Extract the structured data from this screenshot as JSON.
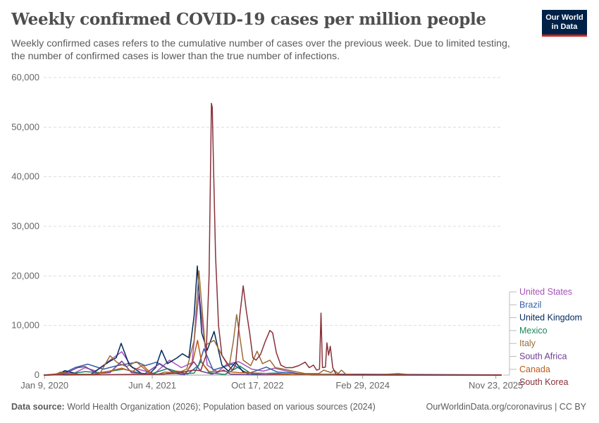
{
  "header": {
    "title": "Weekly confirmed COVID-19 cases per million people",
    "subtitle": "Weekly confirmed cases refers to the cumulative number of cases over the previous week. Due to limited testing, the number of confirmed cases is lower than the true number of infections.",
    "logo_line1": "Our World",
    "logo_line2": "in Data"
  },
  "footer": {
    "source_label": "Data source:",
    "source_text": "World Health Organization (2026); Population based on various sources (2024)",
    "right_text": "OurWorldinData.org/coronavirus | CC BY"
  },
  "chart_data": {
    "type": "line",
    "title": "Weekly confirmed COVID-19 cases per million people",
    "ylim": [
      0,
      60000
    ],
    "y_ticks": [
      0,
      10000,
      20000,
      30000,
      40000,
      50000,
      60000
    ],
    "y_tick_labels": [
      "0",
      "10,000",
      "20,000",
      "30,000",
      "40,000",
      "50,000",
      "60,000"
    ],
    "xlim": [
      "2020-01-05",
      "2025-12-21"
    ],
    "x_ticks": [
      "2020-01-09",
      "2021-06-04",
      "2022-10-17",
      "2024-02-29",
      "2025-11-23"
    ],
    "x_tick_labels": [
      "Jan 9, 2020",
      "Jun 4, 2021",
      "Oct 17, 2022",
      "Feb 29, 2024",
      "Nov 23, 2025"
    ],
    "grid": "horizontal dashed",
    "legend": "right",
    "series": [
      {
        "name": "United States",
        "color": "#a652ba",
        "values": [
          [
            "2020-01-05",
            0
          ],
          [
            "2020-03-15",
            50
          ],
          [
            "2020-04-10",
            650
          ],
          [
            "2020-06-01",
            450
          ],
          [
            "2020-07-20",
            1500
          ],
          [
            "2020-09-10",
            800
          ],
          [
            "2020-11-15",
            3000
          ],
          [
            "2021-01-10",
            4700
          ],
          [
            "2021-03-01",
            1500
          ],
          [
            "2021-06-15",
            300
          ],
          [
            "2021-08-25",
            3000
          ],
          [
            "2021-10-20",
            1500
          ],
          [
            "2021-12-10",
            2500
          ],
          [
            "2022-01-12",
            16500
          ],
          [
            "2022-02-20",
            2000
          ],
          [
            "2022-04-10",
            600
          ],
          [
            "2022-05-25",
            2200
          ],
          [
            "2022-07-20",
            2700
          ],
          [
            "2022-09-20",
            1200
          ],
          [
            "2022-11-15",
            800
          ],
          [
            "2023-01-05",
            1400
          ],
          [
            "2023-03-15",
            700
          ],
          [
            "2023-05-10",
            150
          ],
          [
            "2023-07-01",
            0
          ],
          [
            "2025-12-21",
            0
          ]
        ]
      },
      {
        "name": "Brazil",
        "color": "#3360a9",
        "values": [
          [
            "2020-01-05",
            0
          ],
          [
            "2020-03-25",
            80
          ],
          [
            "2020-06-01",
            1500
          ],
          [
            "2020-08-01",
            2200
          ],
          [
            "2020-10-15",
            1200
          ],
          [
            "2020-12-20",
            1900
          ],
          [
            "2021-03-25",
            2600
          ],
          [
            "2021-05-01",
            1900
          ],
          [
            "2021-06-25",
            2600
          ],
          [
            "2021-09-01",
            800
          ],
          [
            "2021-11-20",
            200
          ],
          [
            "2022-01-10",
            2000
          ],
          [
            "2022-02-05",
            5300
          ],
          [
            "2022-03-20",
            1000
          ],
          [
            "2022-06-20",
            2200
          ],
          [
            "2022-09-01",
            250
          ],
          [
            "2022-11-28",
            1600
          ],
          [
            "2023-01-20",
            600
          ],
          [
            "2023-04-01",
            400
          ],
          [
            "2023-06-01",
            150
          ],
          [
            "2023-09-01",
            150
          ],
          [
            "2024-01-15",
            180
          ],
          [
            "2025-12-21",
            30
          ]
        ]
      },
      {
        "name": "United Kingdom",
        "color": "#00295b",
        "values": [
          [
            "2020-01-05",
            0
          ],
          [
            "2020-03-10",
            50
          ],
          [
            "2020-04-15",
            900
          ],
          [
            "2020-06-15",
            150
          ],
          [
            "2020-08-15",
            100
          ],
          [
            "2020-10-01",
            1500
          ],
          [
            "2020-11-15",
            2800
          ],
          [
            "2020-12-15",
            3500
          ],
          [
            "2021-01-07",
            6400
          ],
          [
            "2021-02-15",
            2000
          ],
          [
            "2021-04-15",
            300
          ],
          [
            "2021-05-20",
            200
          ],
          [
            "2021-06-20",
            1500
          ],
          [
            "2021-07-18",
            5000
          ],
          [
            "2021-08-15",
            2300
          ],
          [
            "2021-10-01",
            3500
          ],
          [
            "2021-10-25",
            4300
          ],
          [
            "2021-11-25",
            3500
          ],
          [
            "2021-12-20",
            12000
          ],
          [
            "2022-01-04",
            22000
          ],
          [
            "2022-01-25",
            8500
          ],
          [
            "2022-02-20",
            5000
          ],
          [
            "2022-03-25",
            8800
          ],
          [
            "2022-05-01",
            2000
          ],
          [
            "2022-06-01",
            800
          ],
          [
            "2022-07-05",
            2600
          ],
          [
            "2022-08-10",
            600
          ],
          [
            "2022-10-01",
            400
          ],
          [
            "2022-12-15",
            300
          ],
          [
            "2023-02-01",
            150
          ],
          [
            "2023-06-01",
            50
          ],
          [
            "2025-12-21",
            0
          ]
        ]
      },
      {
        "name": "Mexico",
        "color": "#18855e",
        "values": [
          [
            "2020-01-05",
            0
          ],
          [
            "2020-04-15",
            100
          ],
          [
            "2020-07-20",
            700
          ],
          [
            "2020-10-01",
            500
          ],
          [
            "2021-01-20",
            1200
          ],
          [
            "2021-04-15",
            300
          ],
          [
            "2021-06-01",
            250
          ],
          [
            "2021-08-15",
            1300
          ],
          [
            "2021-11-01",
            300
          ],
          [
            "2021-12-20",
            400
          ],
          [
            "2022-01-22",
            2800
          ],
          [
            "2022-03-01",
            500
          ],
          [
            "2022-05-15",
            100
          ],
          [
            "2022-07-25",
            1800
          ],
          [
            "2022-09-20",
            200
          ],
          [
            "2023-01-05",
            400
          ],
          [
            "2023-04-01",
            100
          ],
          [
            "2023-07-01",
            50
          ],
          [
            "2024-01-01",
            20
          ],
          [
            "2025-12-21",
            10
          ]
        ]
      },
      {
        "name": "Italy",
        "color": "#996d39",
        "values": [
          [
            "2020-01-05",
            0
          ],
          [
            "2020-02-25",
            50
          ],
          [
            "2020-03-25",
            600
          ],
          [
            "2020-05-20",
            100
          ],
          [
            "2020-08-15",
            150
          ],
          [
            "2020-10-01",
            500
          ],
          [
            "2020-11-15",
            3900
          ],
          [
            "2020-12-20",
            2500
          ],
          [
            "2021-02-01",
            1700
          ],
          [
            "2021-03-20",
            2700
          ],
          [
            "2021-05-20",
            400
          ],
          [
            "2021-07-01",
            150
          ],
          [
            "2021-08-01",
            600
          ],
          [
            "2021-10-01",
            400
          ],
          [
            "2021-11-15",
            1200
          ],
          [
            "2021-12-20",
            7000
          ],
          [
            "2022-01-12",
            21000
          ],
          [
            "2022-02-10",
            6000
          ],
          [
            "2022-03-25",
            7000
          ],
          [
            "2022-05-01",
            4000
          ],
          [
            "2022-06-05",
            1800
          ],
          [
            "2022-06-25",
            7000
          ],
          [
            "2022-07-10",
            12200
          ],
          [
            "2022-08-10",
            3000
          ],
          [
            "2022-09-15",
            1900
          ],
          [
            "2022-10-15",
            4800
          ],
          [
            "2022-11-10",
            2300
          ],
          [
            "2022-12-15",
            3000
          ],
          [
            "2023-01-10",
            1500
          ],
          [
            "2023-02-20",
            1200
          ],
          [
            "2023-04-01",
            800
          ],
          [
            "2023-06-01",
            300
          ],
          [
            "2023-08-05",
            300
          ],
          [
            "2023-08-28",
            1000
          ],
          [
            "2023-10-01",
            500
          ],
          [
            "2023-10-15",
            1000
          ],
          [
            "2023-11-05",
            300
          ],
          [
            "2023-11-20",
            1000
          ],
          [
            "2023-12-10",
            200
          ],
          [
            "2024-02-01",
            100
          ],
          [
            "2024-06-01",
            100
          ],
          [
            "2024-08-15",
            300
          ],
          [
            "2024-10-15",
            50
          ],
          [
            "2025-12-21",
            20
          ]
        ]
      },
      {
        "name": "South Africa",
        "color": "#6d3e91",
        "values": [
          [
            "2020-01-05",
            0
          ],
          [
            "2020-04-01",
            50
          ],
          [
            "2020-06-15",
            1500
          ],
          [
            "2020-07-20",
            1700
          ],
          [
            "2020-09-15",
            300
          ],
          [
            "2020-11-15",
            500
          ],
          [
            "2021-01-10",
            2800
          ],
          [
            "2021-02-25",
            500
          ],
          [
            "2021-05-01",
            300
          ],
          [
            "2021-07-10",
            2300
          ],
          [
            "2021-09-15",
            400
          ],
          [
            "2021-11-05",
            50
          ],
          [
            "2021-12-18",
            2700
          ],
          [
            "2022-01-20",
            800
          ],
          [
            "2022-03-15",
            200
          ],
          [
            "2022-05-10",
            1000
          ],
          [
            "2022-06-10",
            200
          ],
          [
            "2022-10-01",
            50
          ],
          [
            "2025-12-21",
            0
          ]
        ]
      },
      {
        "name": "Canada",
        "color": "#c05917",
        "values": [
          [
            "2020-01-05",
            0
          ],
          [
            "2020-04-15",
            400
          ],
          [
            "2020-06-15",
            100
          ],
          [
            "2020-09-01",
            50
          ],
          [
            "2020-11-01",
            700
          ],
          [
            "2021-01-10",
            1400
          ],
          [
            "2021-03-01",
            700
          ],
          [
            "2021-04-20",
            2000
          ],
          [
            "2021-06-01",
            200
          ],
          [
            "2021-08-01",
            200
          ],
          [
            "2021-09-25",
            800
          ],
          [
            "2021-11-15",
            600
          ],
          [
            "2021-12-15",
            3000
          ],
          [
            "2022-01-05",
            7000
          ],
          [
            "2022-01-25",
            2500
          ],
          [
            "2022-03-01",
            700
          ],
          [
            "2022-05-01",
            800
          ],
          [
            "2022-07-20",
            500
          ],
          [
            "2022-10-01",
            400
          ],
          [
            "2022-12-01",
            300
          ],
          [
            "2023-03-01",
            100
          ],
          [
            "2023-06-01",
            30
          ],
          [
            "2025-12-21",
            10
          ]
        ]
      },
      {
        "name": "South Korea",
        "color": "#883039",
        "values": [
          [
            "2020-01-05",
            0
          ],
          [
            "2020-03-01",
            60
          ],
          [
            "2020-04-15",
            20
          ],
          [
            "2020-09-01",
            50
          ],
          [
            "2021-01-01",
            100
          ],
          [
            "2021-07-15",
            200
          ],
          [
            "2021-10-01",
            350
          ],
          [
            "2021-12-15",
            1000
          ],
          [
            "2022-01-20",
            900
          ],
          [
            "2022-02-15",
            4000
          ],
          [
            "2022-03-01",
            20000
          ],
          [
            "2022-03-08",
            42000
          ],
          [
            "2022-03-12",
            54800
          ],
          [
            "2022-03-16",
            54000
          ],
          [
            "2022-03-22",
            42000
          ],
          [
            "2022-04-01",
            24000
          ],
          [
            "2022-04-15",
            10000
          ],
          [
            "2022-05-01",
            4000
          ],
          [
            "2022-05-25",
            2300
          ],
          [
            "2022-06-20",
            1000
          ],
          [
            "2022-07-05",
            2000
          ],
          [
            "2022-07-25",
            12000
          ],
          [
            "2022-08-10",
            18000
          ],
          [
            "2022-08-25",
            13000
          ],
          [
            "2022-09-10",
            8500
          ],
          [
            "2022-09-25",
            3500
          ],
          [
            "2022-10-10",
            3000
          ],
          [
            "2022-11-01",
            4200
          ],
          [
            "2022-11-25",
            7000
          ],
          [
            "2022-12-15",
            9000
          ],
          [
            "2022-12-28",
            8500
          ],
          [
            "2023-01-15",
            4500
          ],
          [
            "2023-02-05",
            2000
          ],
          [
            "2023-03-01",
            1500
          ],
          [
            "2023-04-01",
            1500
          ],
          [
            "2023-05-01",
            1900
          ],
          [
            "2023-06-01",
            2600
          ],
          [
            "2023-06-20",
            1500
          ],
          [
            "2023-07-10",
            2000
          ],
          [
            "2023-07-25",
            1000
          ],
          [
            "2023-08-08",
            1200
          ],
          [
            "2023-08-15",
            12500
          ],
          [
            "2023-08-22",
            1500
          ],
          [
            "2023-09-05",
            1600
          ],
          [
            "2023-09-12",
            6500
          ],
          [
            "2023-09-20",
            4000
          ],
          [
            "2023-09-28",
            5800
          ],
          [
            "2023-10-10",
            1500
          ],
          [
            "2023-10-25",
            200
          ],
          [
            "2023-11-15",
            50
          ],
          [
            "2024-01-01",
            30
          ],
          [
            "2025-12-21",
            0
          ]
        ]
      }
    ]
  }
}
